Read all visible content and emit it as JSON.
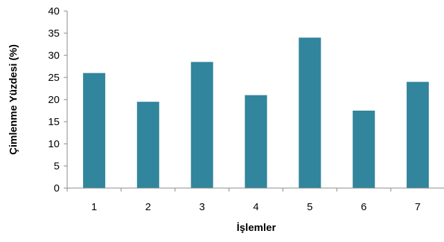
{
  "chart_data": {
    "type": "bar",
    "categories": [
      "1",
      "2",
      "3",
      "4",
      "5",
      "6",
      "7"
    ],
    "values": [
      26,
      19.5,
      28.5,
      21,
      34,
      17.5,
      24
    ],
    "xlabel": "İşlemler",
    "ylabel": "Çimlenme Yüzdesi (%)",
    "ylim": [
      0,
      40
    ],
    "yticks": [
      "0",
      "5",
      "10",
      "15",
      "20",
      "25",
      "30",
      "35",
      "40"
    ],
    "grid": false,
    "legend": "none",
    "bar_color": "#31859c"
  }
}
